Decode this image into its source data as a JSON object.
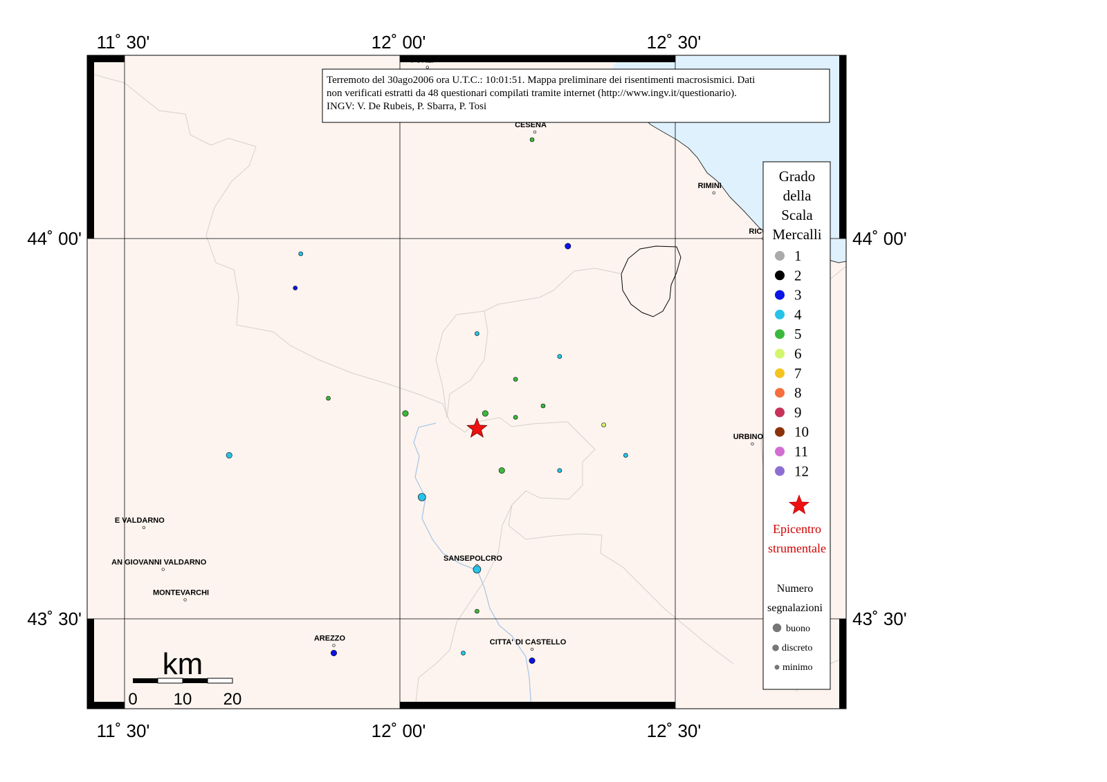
{
  "map": {
    "lon_labels": [
      "11˚ 30'",
      "12˚ 00'",
      "12˚ 30'"
    ],
    "lat_labels": [
      "44˚ 00'",
      "43˚ 30'"
    ],
    "info_lines": [
      "Terremoto del 30ago2006 ora U.T.C.: 10:01:51.  Mappa preliminare dei risentimenti macrosismici.  Dati",
      "non verificati estratti da 48 questionari compilati tramite internet (http://www.ingv.it/questionario).",
      "INGV: V.  De Rubeis, P.  Sbarra, P.  Tosi"
    ],
    "cities": [
      {
        "name": "FORLI'",
        "lon": 12.05,
        "lat": 44.225
      },
      {
        "name": "CESENA",
        "lon": 12.245,
        "lat": 44.14
      },
      {
        "name": "RIMINI",
        "lon": 12.57,
        "lat": 44.06
      },
      {
        "name": "RICCI",
        "lon": 12.66,
        "lat": 44.0
      },
      {
        "name": "URBINO",
        "lon": 12.64,
        "lat": 43.73
      },
      {
        "name": "E VALDARNO",
        "lon": 11.535,
        "lat": 43.62
      },
      {
        "name": "AN GIOVANNI VALDARNO",
        "lon": 11.57,
        "lat": 43.565
      },
      {
        "name": "MONTEVARCHI",
        "lon": 11.61,
        "lat": 43.525
      },
      {
        "name": "SANSEPOLCRO",
        "lon": 12.14,
        "lat": 43.57
      },
      {
        "name": "AREZZO",
        "lon": 11.88,
        "lat": 43.465
      },
      {
        "name": "CITTA' DI CASTELLO",
        "lon": 12.24,
        "lat": 43.46
      }
    ],
    "epicenter": {
      "lon": 12.14,
      "lat": 43.75
    },
    "observations": [
      {
        "lon": 12.24,
        "lat": 44.13,
        "grade": 5,
        "quality": "minimo"
      },
      {
        "lon": 12.305,
        "lat": 43.99,
        "grade": 3,
        "quality": "discreto"
      },
      {
        "lon": 11.82,
        "lat": 43.98,
        "grade": 4,
        "quality": "minimo"
      },
      {
        "lon": 11.81,
        "lat": 43.935,
        "grade": 3,
        "quality": "minimo"
      },
      {
        "lon": 12.14,
        "lat": 43.875,
        "grade": 4,
        "quality": "minimo"
      },
      {
        "lon": 12.29,
        "lat": 43.845,
        "grade": 4,
        "quality": "minimo"
      },
      {
        "lon": 12.21,
        "lat": 43.815,
        "grade": 5,
        "quality": "minimo"
      },
      {
        "lon": 11.87,
        "lat": 43.79,
        "grade": 5,
        "quality": "minimo"
      },
      {
        "lon": 12.26,
        "lat": 43.78,
        "grade": 5,
        "quality": "minimo"
      },
      {
        "lon": 12.01,
        "lat": 43.77,
        "grade": 5,
        "quality": "discreto"
      },
      {
        "lon": 12.155,
        "lat": 43.77,
        "grade": 5,
        "quality": "discreto"
      },
      {
        "lon": 12.21,
        "lat": 43.765,
        "grade": 5,
        "quality": "minimo"
      },
      {
        "lon": 12.37,
        "lat": 43.755,
        "grade": 6,
        "quality": "minimo"
      },
      {
        "lon": 11.69,
        "lat": 43.715,
        "grade": 4,
        "quality": "discreto"
      },
      {
        "lon": 12.41,
        "lat": 43.715,
        "grade": 4,
        "quality": "minimo"
      },
      {
        "lon": 12.185,
        "lat": 43.695,
        "grade": 5,
        "quality": "discreto"
      },
      {
        "lon": 12.29,
        "lat": 43.695,
        "grade": 4,
        "quality": "minimo"
      },
      {
        "lon": 12.04,
        "lat": 43.66,
        "grade": 4,
        "quality": "buono"
      },
      {
        "lon": 12.14,
        "lat": 43.565,
        "grade": 4,
        "quality": "buono"
      },
      {
        "lon": 12.14,
        "lat": 43.51,
        "grade": 5,
        "quality": "minimo"
      },
      {
        "lon": 11.88,
        "lat": 43.455,
        "grade": 3,
        "quality": "discreto"
      },
      {
        "lon": 12.115,
        "lat": 43.455,
        "grade": 4,
        "quality": "minimo"
      },
      {
        "lon": 12.24,
        "lat": 43.445,
        "grade": 3,
        "quality": "discreto"
      }
    ],
    "scale_bar": {
      "label": "km",
      "ticks": [
        "0",
        "10",
        "20"
      ]
    }
  },
  "legend": {
    "title_lines": [
      "Grado",
      "della",
      "Scala",
      "Mercalli"
    ],
    "grades": [
      {
        "label": "1",
        "color": "#aaaaaa"
      },
      {
        "label": "2",
        "color": "#000000"
      },
      {
        "label": "3",
        "color": "#0a14e6"
      },
      {
        "label": "4",
        "color": "#28c3e8"
      },
      {
        "label": "5",
        "color": "#3cb93c"
      },
      {
        "label": "6",
        "color": "#d2f56e"
      },
      {
        "label": "7",
        "color": "#f5c31e"
      },
      {
        "label": "8",
        "color": "#f56e3c"
      },
      {
        "label": "9",
        "color": "#c8325a"
      },
      {
        "label": "10",
        "color": "#8c320a"
      },
      {
        "label": "11",
        "color": "#d26ed2"
      },
      {
        "label": "12",
        "color": "#8c6ed2"
      }
    ],
    "epicenter_lines": [
      "Epicentro",
      "strumentale"
    ],
    "count_lines": [
      "Numero",
      "segnalazioni"
    ],
    "sizes": [
      "buono",
      "discreto",
      "minimo"
    ]
  }
}
